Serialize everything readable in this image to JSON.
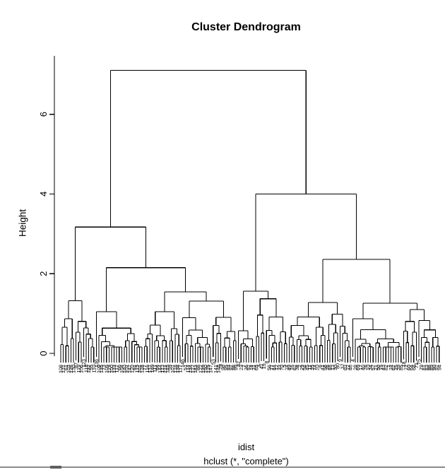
{
  "window": {
    "background": "#ffffff",
    "foreground": "#000000"
  },
  "chart_data": {
    "type": "dendrogram",
    "title": "Cluster Dendrogram",
    "xlabel": "idist",
    "sub": "hclust (*, \"complete\")",
    "ylabel": "Height",
    "yticks": [
      0,
      2,
      4,
      6
    ],
    "ylim": [
      0,
      7.4
    ],
    "grid": false,
    "legend": "none",
    "n_leaves": 150,
    "root_height": 7.1,
    "major_merge_heights": [
      7.1,
      4.0,
      3.17,
      2.36,
      2.15,
      1.56,
      1.54,
      1.4,
      1.32
    ],
    "hang_below_merge": 0.71,
    "tree": {
      "h": 7.1,
      "children": [
        {
          "h": 3.17,
          "children": [
            {
              "h": 1.32,
              "n": 14,
              "seed": 11
            },
            {
              "h": 2.15,
              "children": [
                {
                  "h": 1.05,
                  "n": 19,
                  "seed": 22
                },
                {
                  "h": 1.54,
                  "children": [
                    {
                      "h": 1.05,
                      "n": 15,
                      "seed": 33
                    },
                    {
                      "h": 1.31,
                      "n": 22,
                      "seed": 44
                    }
                  ]
                }
              ]
            }
          ]
        },
        {
          "h": 4.0,
          "children": [
            {
              "h": 1.56,
              "children": [
                {
                  "h": 0.57,
                  "n": 7,
                  "seed": 55
                },
                {
                  "h": 1.37,
                  "n": 13,
                  "seed": 66
                }
              ]
            },
            {
              "h": 2.36,
              "children": [
                {
                  "h": 1.28,
                  "n": 25,
                  "seed": 77
                },
                {
                  "h": 1.26,
                  "children": [
                    {
                      "h": 0.87,
                      "n": 20,
                      "seed": 88
                    },
                    {
                      "h": 1.1,
                      "n": 15,
                      "seed": 99
                    }
                  ]
                }
              ]
            }
          ]
        }
      ]
    },
    "leaf_labels": [
      108,
      131,
      61,
      103,
      126,
      130,
      87,
      119,
      106,
      123,
      118,
      132,
      55,
      110,
      136,
      109,
      135,
      73,
      105,
      129,
      100,
      133,
      112,
      66,
      104,
      140,
      102,
      142,
      120,
      91,
      115,
      101,
      128,
      77,
      116,
      137,
      149,
      111,
      84,
      144,
      113,
      121,
      145,
      59,
      107,
      124,
      138,
      117,
      146,
      51,
      114,
      134,
      127,
      143,
      88,
      122,
      139,
      150,
      125,
      147,
      53,
      141,
      148,
      78,
      96,
      95,
      93,
      97,
      98,
      99,
      42,
      23,
      7,
      36,
      52,
      14,
      31,
      65,
      3,
      47,
      19,
      8,
      56,
      27,
      44,
      12,
      33,
      70,
      5,
      24,
      49,
      16,
      62,
      38,
      2,
      29,
      54,
      45,
      11,
      35,
      74,
      20,
      6,
      41,
      58,
      26,
      48,
      13,
      30,
      80,
      9,
      37,
      63,
      22,
      46,
      4,
      28,
      69,
      17,
      40,
      76,
      10,
      34,
      57,
      21,
      50,
      15,
      43,
      82,
      1,
      32,
      67,
      25,
      39,
      85,
      18,
      72,
      60,
      64,
      68,
      71,
      75,
      79,
      81,
      83,
      86,
      89,
      90,
      92,
      94
    ]
  },
  "footer": {
    "separator_color": "#8a8a8a"
  }
}
